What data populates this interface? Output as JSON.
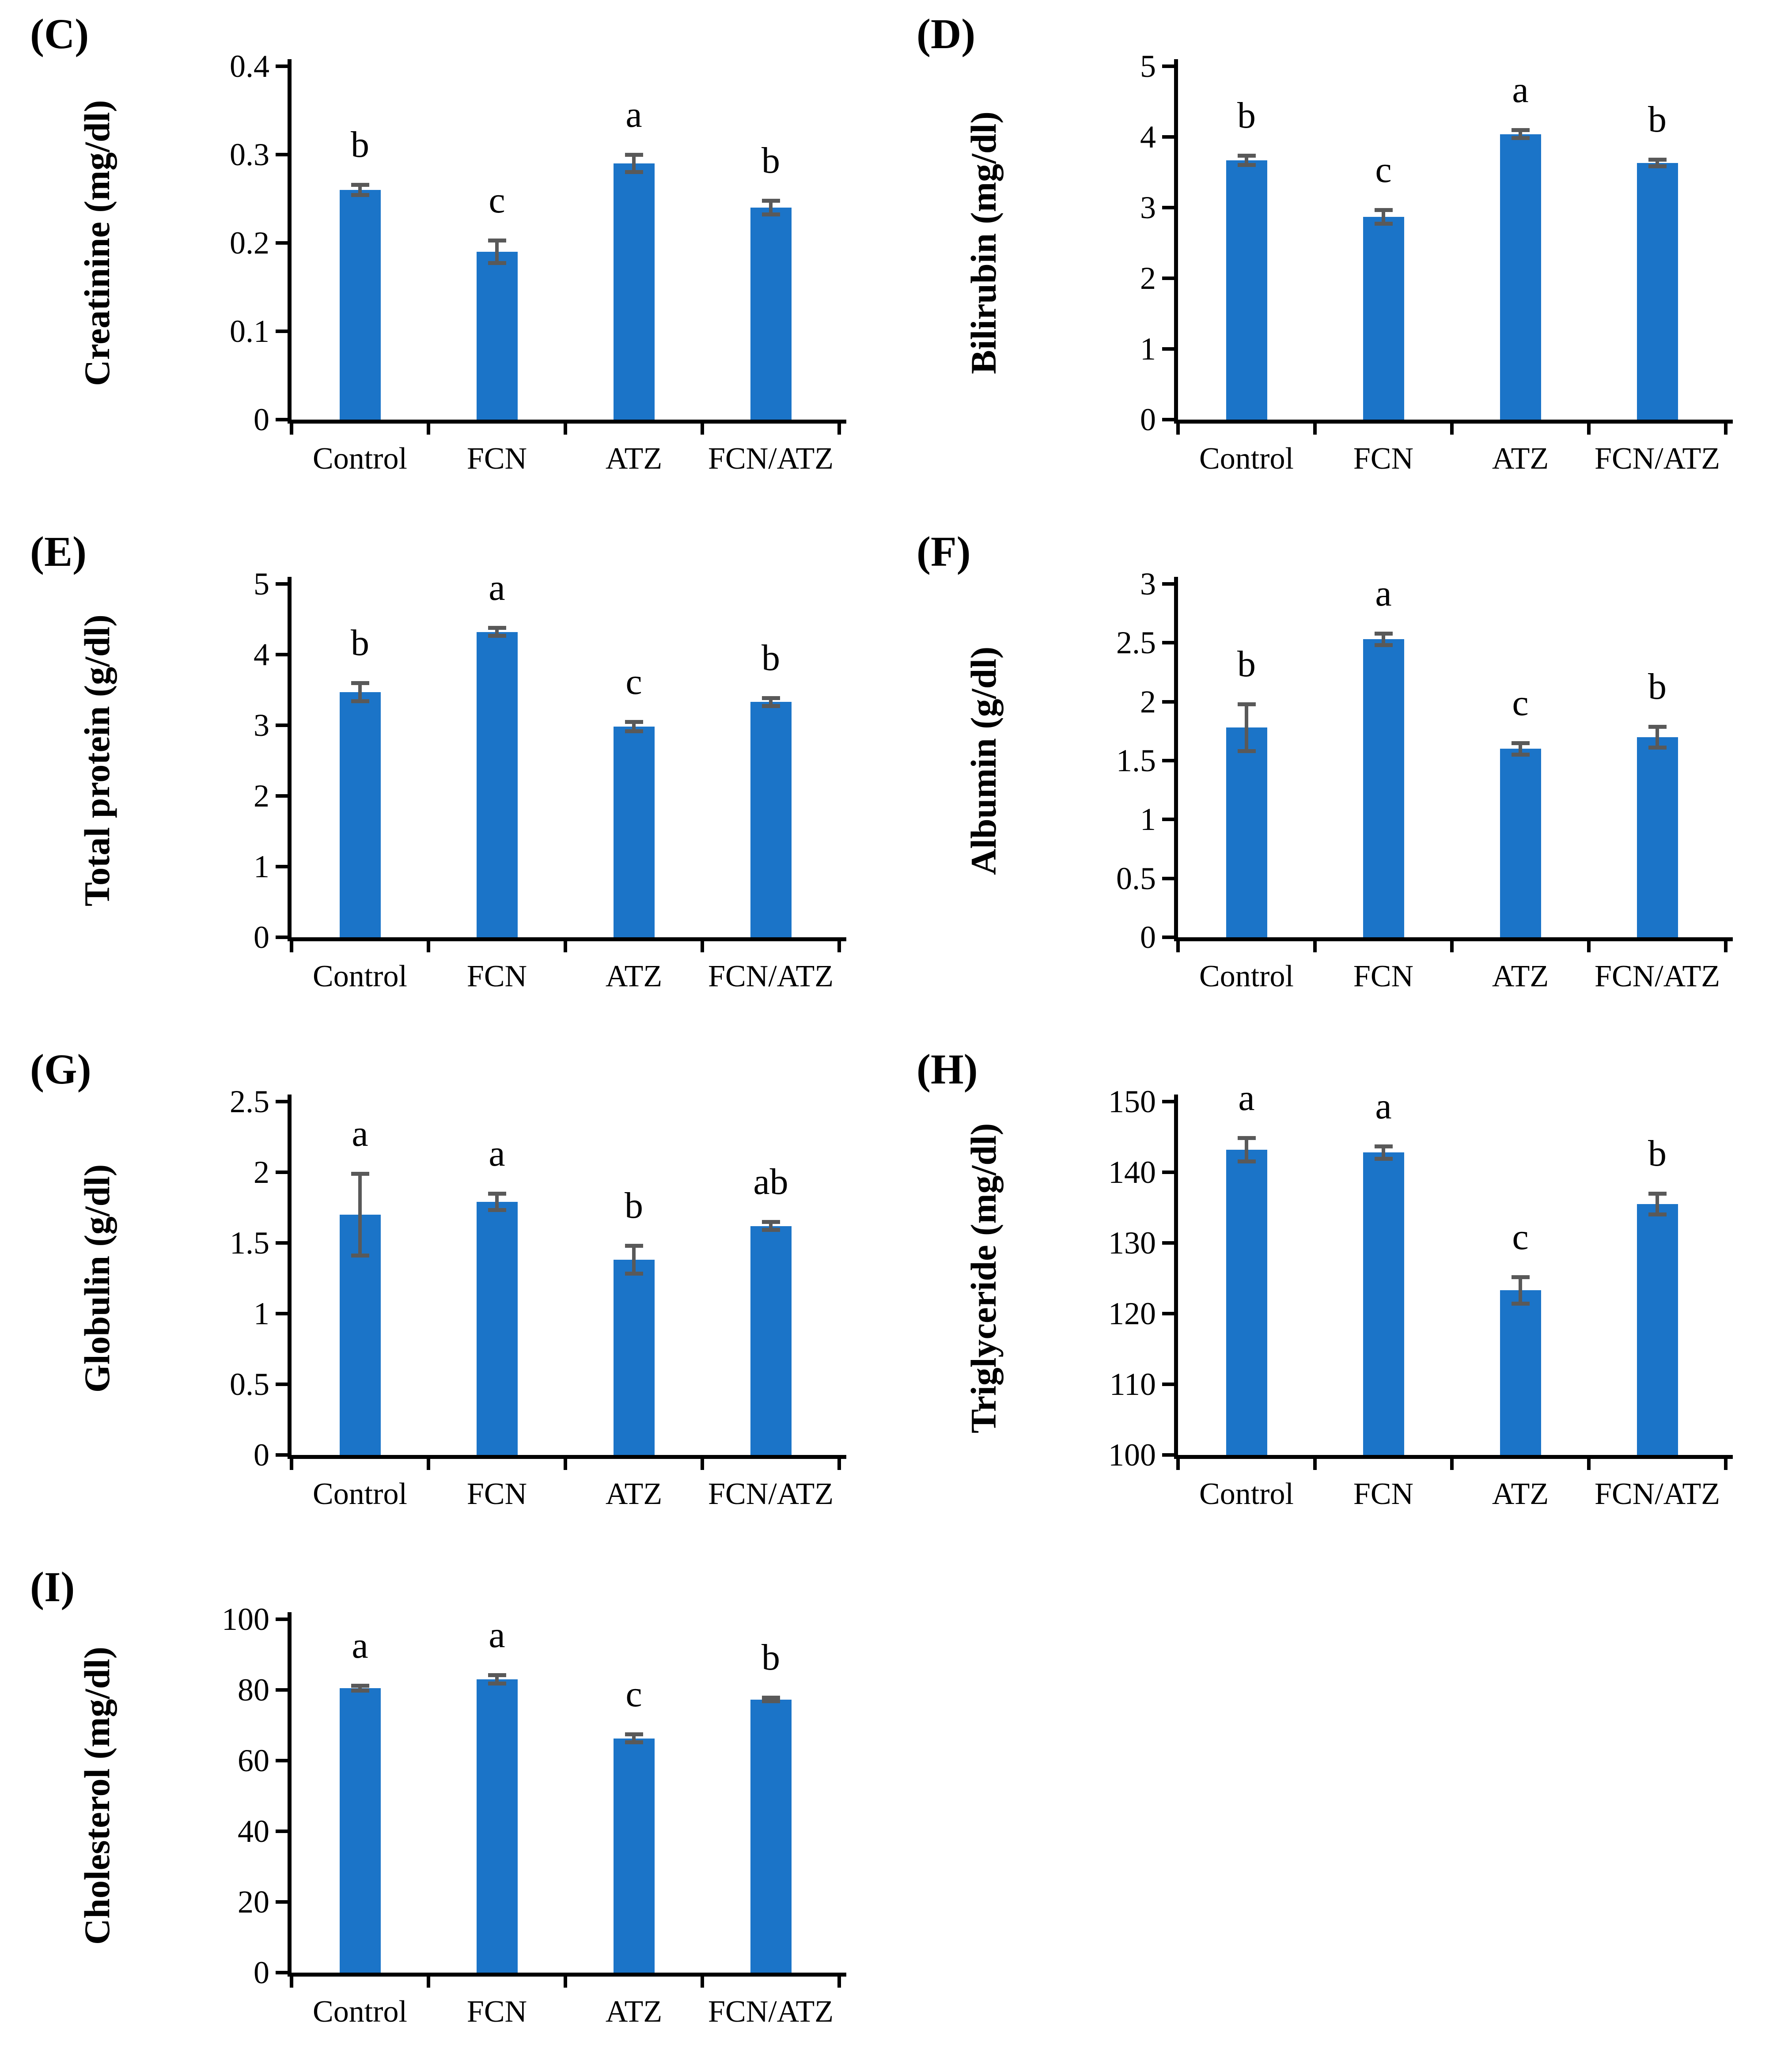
{
  "figure": {
    "bar_color": "#1B74C8",
    "error_color": "#595959",
    "axis_color": "#000000",
    "categories": [
      "Control",
      "FCN",
      "ATZ",
      "FCN/ATZ"
    ]
  },
  "chart_data": [
    {
      "panel": "(C)",
      "type": "bar",
      "ylabel": "Creatinine (mg/dl)",
      "categories": [
        "Control",
        "FCN",
        "ATZ",
        "FCN/ATZ"
      ],
      "values": [
        0.26,
        0.19,
        0.29,
        0.24
      ],
      "errors": [
        0.006,
        0.013,
        0.01,
        0.008
      ],
      "sig_letters": [
        "b",
        "c",
        "a",
        "b"
      ],
      "ylim": [
        0,
        0.4
      ],
      "yticks": [
        "0",
        "0.1",
        "0.2",
        "0.3",
        "0.4"
      ],
      "legend": "none",
      "grid": "off"
    },
    {
      "panel": "(D)",
      "type": "bar",
      "ylabel": "Bilirubin (mg/dl)",
      "categories": [
        "Control",
        "FCN",
        "ATZ",
        "FCN/ATZ"
      ],
      "values": [
        3.67,
        2.87,
        4.04,
        3.63
      ],
      "errors": [
        0.07,
        0.1,
        0.06,
        0.05
      ],
      "sig_letters": [
        "b",
        "c",
        "a",
        "b"
      ],
      "ylim": [
        0,
        5
      ],
      "yticks": [
        "0",
        "1",
        "2",
        "3",
        "4",
        "5"
      ],
      "legend": "none",
      "grid": "off"
    },
    {
      "panel": "(E)",
      "type": "bar",
      "ylabel": "Total protein (g/dl)",
      "categories": [
        "Control",
        "FCN",
        "ATZ",
        "FCN/ATZ"
      ],
      "values": [
        3.47,
        4.32,
        2.98,
        3.33
      ],
      "errors": [
        0.13,
        0.06,
        0.07,
        0.06
      ],
      "sig_letters": [
        "b",
        "a",
        "c",
        "b"
      ],
      "ylim": [
        0,
        5
      ],
      "yticks": [
        "0",
        "1",
        "2",
        "3",
        "4",
        "5"
      ],
      "legend": "none",
      "grid": "off"
    },
    {
      "panel": "(F)",
      "type": "bar",
      "ylabel": "Albumin (g/dl)",
      "categories": [
        "Control",
        "FCN",
        "ATZ",
        "FCN/ATZ"
      ],
      "values": [
        1.78,
        2.53,
        1.6,
        1.7
      ],
      "errors": [
        0.2,
        0.05,
        0.05,
        0.09
      ],
      "sig_letters": [
        "b",
        "a",
        "c",
        "b"
      ],
      "ylim": [
        0,
        3
      ],
      "yticks": [
        "0",
        "0.5",
        "1",
        "1.5",
        "2",
        "2.5",
        "3"
      ],
      "legend": "none",
      "grid": "off"
    },
    {
      "panel": "(G)",
      "type": "bar",
      "ylabel": "Globulin (g/dl)",
      "categories": [
        "Control",
        "FCN",
        "ATZ",
        "FCN/ATZ"
      ],
      "values": [
        1.7,
        1.79,
        1.38,
        1.62
      ],
      "errors": [
        0.29,
        0.06,
        0.1,
        0.03
      ],
      "sig_letters": [
        "a",
        "a",
        "b",
        "ab"
      ],
      "ylim": [
        0,
        2.5
      ],
      "yticks": [
        "0",
        "0.5",
        "1",
        "1.5",
        "2",
        "2.5"
      ],
      "legend": "none",
      "grid": "off"
    },
    {
      "panel": "(H)",
      "type": "bar",
      "ylabel": "Triglyceride (mg/dl)",
      "categories": [
        "Control",
        "FCN",
        "ATZ",
        "FCN/ATZ"
      ],
      "values": [
        143.2,
        142.8,
        123.3,
        135.5
      ],
      "errors": [
        1.7,
        0.9,
        1.9,
        1.5
      ],
      "sig_letters": [
        "a",
        "a",
        "c",
        "b"
      ],
      "ylim": [
        100,
        150
      ],
      "yticks": [
        "100",
        "110",
        "120",
        "130",
        "140",
        "150"
      ],
      "legend": "none",
      "grid": "off"
    },
    {
      "panel": "(I)",
      "type": "bar",
      "ylabel": "Cholesterol (mg/dl)",
      "categories": [
        "Control",
        "FCN",
        "ATZ",
        "FCN/ATZ"
      ],
      "values": [
        80.5,
        83,
        66.3,
        77.3
      ],
      "errors": [
        0.8,
        1.3,
        1.2,
        0.6
      ],
      "sig_letters": [
        "a",
        "a",
        "c",
        "b"
      ],
      "ylim": [
        0,
        100
      ],
      "yticks": [
        "0",
        "20",
        "40",
        "60",
        "80",
        "100"
      ],
      "legend": "none",
      "grid": "off"
    }
  ]
}
